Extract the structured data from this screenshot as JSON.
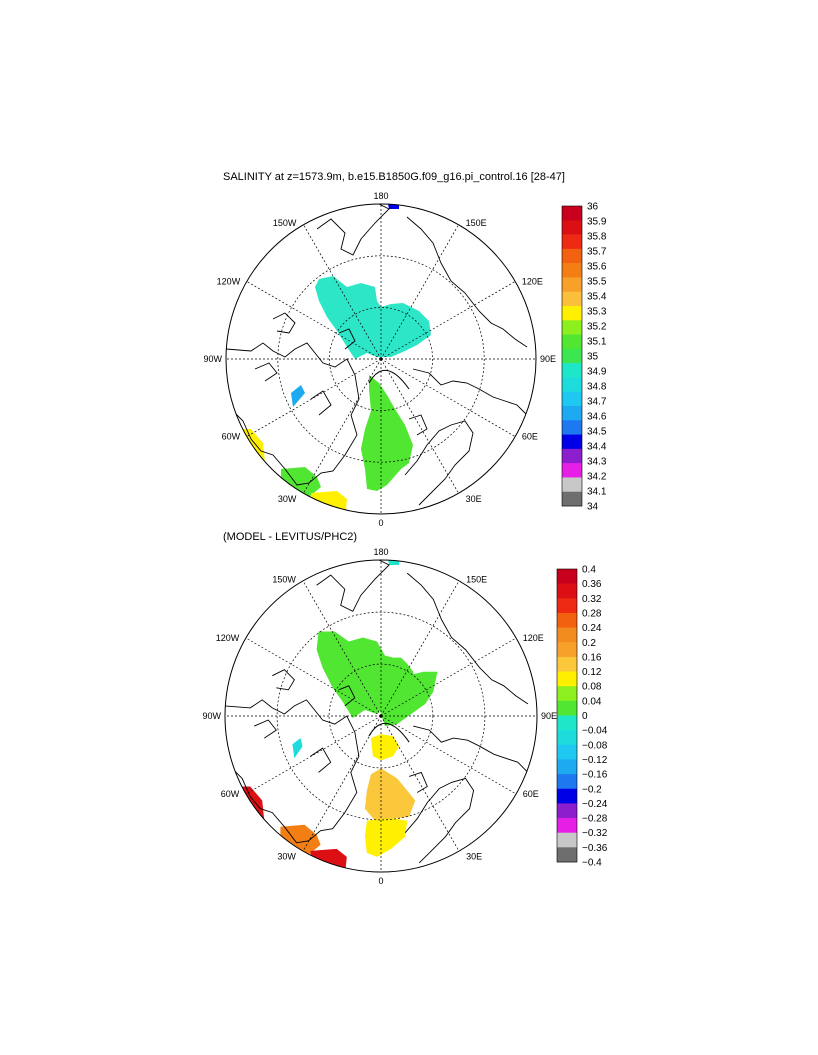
{
  "panels": [
    {
      "title": "SALINITY at z=1573.9m, b.e15.B1850G.f09_g16.pi_control.16 [28-47]",
      "lon_labels": {
        "lon180": "180",
        "lon150w": "150W",
        "lon150e": "150E",
        "lon120w": "120W",
        "lon120e": "120E",
        "lon90w": "90W",
        "lon90e": "90E",
        "lon60w": "60W",
        "lon60e": "60E",
        "lon30w": "30W",
        "lon30e": "30E",
        "lon0": "0"
      },
      "colorbar": {
        "labels": [
          "36",
          "35.9",
          "35.8",
          "35.7",
          "35.6",
          "35.5",
          "35.4",
          "35.3",
          "35.2",
          "35.1",
          "35",
          "34.9",
          "34.8",
          "34.7",
          "34.6",
          "34.5",
          "34.4",
          "34.3",
          "34.2",
          "34.1",
          "34"
        ],
        "colors": [
          "#c8001e",
          "#dc0f14",
          "#ee2a14",
          "#f2610f",
          "#f27e14",
          "#f7a02a",
          "#fbbf3c",
          "#fff000",
          "#8cf01e",
          "#50e632",
          "#3ce650",
          "#1ee6c8",
          "#1edcdc",
          "#1ec8f0",
          "#1eaaf0",
          "#1e78f0",
          "#0000e6",
          "#8c1ecd",
          "#e61ee6",
          "#c8c8c8",
          "#6e6e6e"
        ]
      },
      "regions": {
        "central": "#2de6c8",
        "atlantic": "#50e632",
        "baffin": "#1eaaf0",
        "labrador": "#fff000",
        "greenland_south": "#50e632",
        "iceland_south": "#fff000",
        "top_cap": "#0000e6"
      }
    },
    {
      "title": "(MODEL - LEVITUS/PHC2)",
      "lon_labels": {
        "lon180": "180",
        "lon150w": "150W",
        "lon150e": "150E",
        "lon120w": "120W",
        "lon120e": "120E",
        "lon90w": "90W",
        "lon90e": "90E",
        "lon60w": "60W",
        "lon60e": "60E",
        "lon30w": "30W",
        "lon30e": "30E",
        "lon0": "0"
      },
      "colorbar": {
        "labels": [
          "0.4",
          "0.36",
          "0.32",
          "0.28",
          "0.24",
          "0.2",
          "0.16",
          "0.12",
          "0.08",
          "0.04",
          "0",
          "−0.04",
          "−0.08",
          "−0.12",
          "−0.16",
          "−0.2",
          "−0.24",
          "−0.28",
          "−0.32",
          "−0.36",
          "−0.4"
        ],
        "colors": [
          "#c8001e",
          "#dc0f14",
          "#ee2a14",
          "#f2610f",
          "#f28c1e",
          "#f7a02a",
          "#fbc83c",
          "#fff000",
          "#8cf01e",
          "#50e632",
          "#1ee6c8",
          "#1edcdc",
          "#1ec8f0",
          "#1eaaf0",
          "#1e78f0",
          "#0000e6",
          "#8c1ecd",
          "#e61ee6",
          "#c8c8c8",
          "#6e6e6e"
        ]
      },
      "regions": {
        "central": "#50e632",
        "eurasian": "#50e632",
        "atlantic_upper": "#fff000",
        "atlantic_mid": "#fbc83c",
        "atlantic_lower": "#fff000",
        "baffin": "#1edcdc",
        "labrador": "#dc0f14",
        "greenland_south": "#f27e14",
        "iceland_south": "#dc0f14",
        "top_cap": "#1ee6c8"
      }
    }
  ]
}
